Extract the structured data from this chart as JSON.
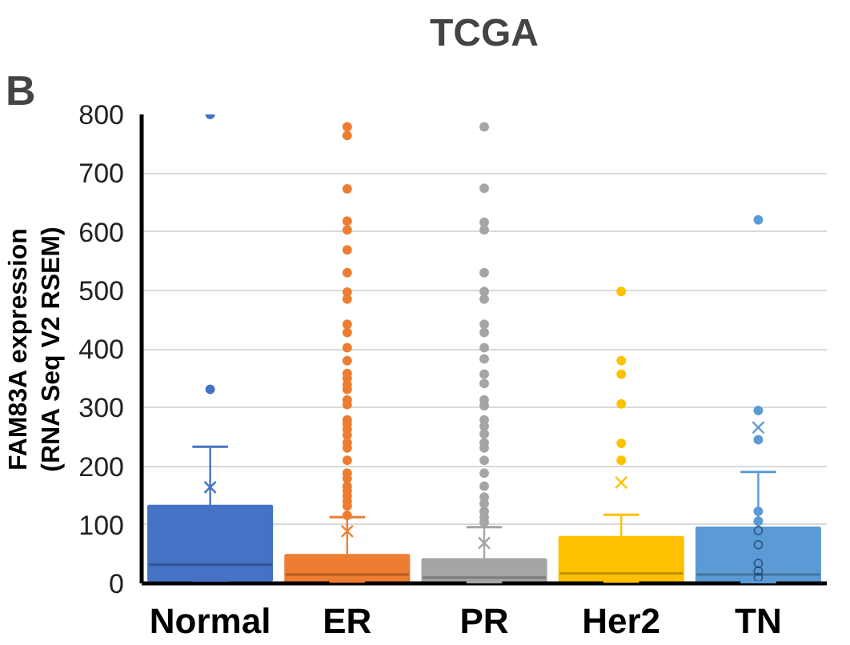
{
  "chart_data": {
    "type": "box",
    "title": "TCGA",
    "ylabel": "FAM83A expression\n(RNA Seq V2 RSEM)",
    "annotations": [
      "B"
    ],
    "categories": [
      "Normal",
      "ER",
      "PR",
      "Her2",
      "TN"
    ],
    "colors": [
      "#4472c4",
      "#ed7d31",
      "#a5a5a5",
      "#ffc000",
      "#5b9bd5"
    ],
    "boxes": [
      {
        "low": 5,
        "q1": 5,
        "median": 32,
        "q3": 132,
        "high": 233,
        "mean": 164,
        "outliers": [
          800,
          331
        ]
      },
      {
        "low": 3,
        "q1": 3,
        "median": 15,
        "q3": 48,
        "high": 113,
        "mean": 89,
        "outliers": [
          779,
          764,
          673,
          618,
          603,
          569,
          530,
          497,
          485,
          442,
          428,
          402,
          380,
          358,
          350,
          339,
          331,
          313,
          305,
          279,
          272,
          263,
          253,
          240,
          231,
          210,
          188,
          179,
          166,
          158,
          149,
          140,
          132,
          116
        ]
      },
      {
        "low": 2,
        "q1": 2,
        "median": 10,
        "q3": 41,
        "high": 96,
        "mean": 69,
        "outliers": [
          779,
          674,
          616,
          603,
          530,
          498,
          485,
          442,
          428,
          402,
          383,
          357,
          341,
          313,
          303,
          279,
          268,
          255,
          240,
          231,
          210,
          188,
          166,
          147,
          136,
          123,
          113,
          104
        ]
      },
      {
        "low": 3,
        "q1": 3,
        "median": 17,
        "q3": 79,
        "high": 117,
        "mean": 172,
        "outliers": [
          498,
          380,
          357,
          306,
          239,
          210
        ]
      },
      {
        "low": 2,
        "q1": 2,
        "median": 15,
        "q3": 95,
        "high": 190,
        "mean": 266,
        "outliers": [
          620,
          295,
          245,
          123,
          106,
          90,
          66,
          34,
          21,
          10
        ]
      }
    ],
    "ylim": [
      0,
      800
    ],
    "yticks": [
      0,
      100,
      200,
      300,
      400,
      500,
      600,
      700,
      800
    ],
    "grid": "y"
  }
}
